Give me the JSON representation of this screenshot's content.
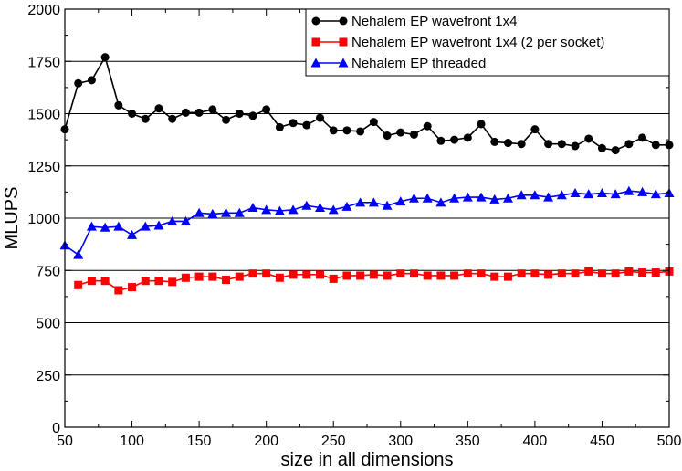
{
  "chart_data": {
    "type": "line",
    "title": "",
    "xlabel": "size in all dimensions",
    "ylabel": "MLUPS",
    "xlim": [
      50,
      500
    ],
    "ylim": [
      0,
      2000
    ],
    "xticks": [
      50,
      100,
      150,
      200,
      250,
      300,
      350,
      400,
      450,
      500
    ],
    "yticks": [
      0,
      250,
      500,
      750,
      1000,
      1250,
      1500,
      1750,
      2000
    ],
    "grid": "horizontal",
    "legend_position": "top-right",
    "x": [
      50,
      60,
      70,
      80,
      90,
      100,
      110,
      120,
      130,
      140,
      150,
      160,
      170,
      180,
      190,
      200,
      210,
      220,
      230,
      240,
      250,
      260,
      270,
      280,
      290,
      300,
      310,
      320,
      330,
      340,
      350,
      360,
      370,
      380,
      390,
      400,
      410,
      420,
      430,
      440,
      450,
      460,
      470,
      480,
      490,
      500
    ],
    "series": [
      {
        "name": "Nehalem EP wavefront 1x4",
        "color": "#000000",
        "marker": "circle",
        "values": [
          1425,
          1645,
          1660,
          1770,
          1540,
          1500,
          1475,
          1525,
          1475,
          1505,
          1505,
          1520,
          1470,
          1500,
          1490,
          1520,
          1435,
          1455,
          1445,
          1480,
          1420,
          1420,
          1415,
          1460,
          1395,
          1410,
          1400,
          1440,
          1370,
          1375,
          1385,
          1450,
          1365,
          1360,
          1355,
          1425,
          1355,
          1355,
          1345,
          1380,
          1335,
          1325,
          1355,
          1385,
          1350,
          1350
        ]
      },
      {
        "name": "Nehalem EP wavefront 1x4 (2 per socket)",
        "color": "#ff0000",
        "marker": "square",
        "values": [
          null,
          680,
          700,
          700,
          655,
          670,
          700,
          700,
          695,
          715,
          720,
          720,
          705,
          720,
          735,
          735,
          715,
          730,
          730,
          730,
          710,
          725,
          725,
          730,
          725,
          735,
          735,
          725,
          725,
          725,
          735,
          735,
          720,
          720,
          735,
          735,
          730,
          735,
          735,
          745,
          735,
          735,
          745,
          740,
          740,
          745
        ]
      },
      {
        "name": "Nehalem EP threaded",
        "color": "#0000ff",
        "marker": "triangle",
        "values": [
          870,
          825,
          960,
          955,
          960,
          920,
          960,
          965,
          985,
          985,
          1025,
          1020,
          1025,
          1025,
          1050,
          1040,
          1035,
          1040,
          1060,
          1050,
          1040,
          1055,
          1075,
          1075,
          1060,
          1080,
          1095,
          1095,
          1075,
          1095,
          1100,
          1100,
          1090,
          1095,
          1110,
          1110,
          1100,
          1110,
          1120,
          1115,
          1120,
          1115,
          1130,
          1125,
          1115,
          1120
        ]
      }
    ]
  }
}
